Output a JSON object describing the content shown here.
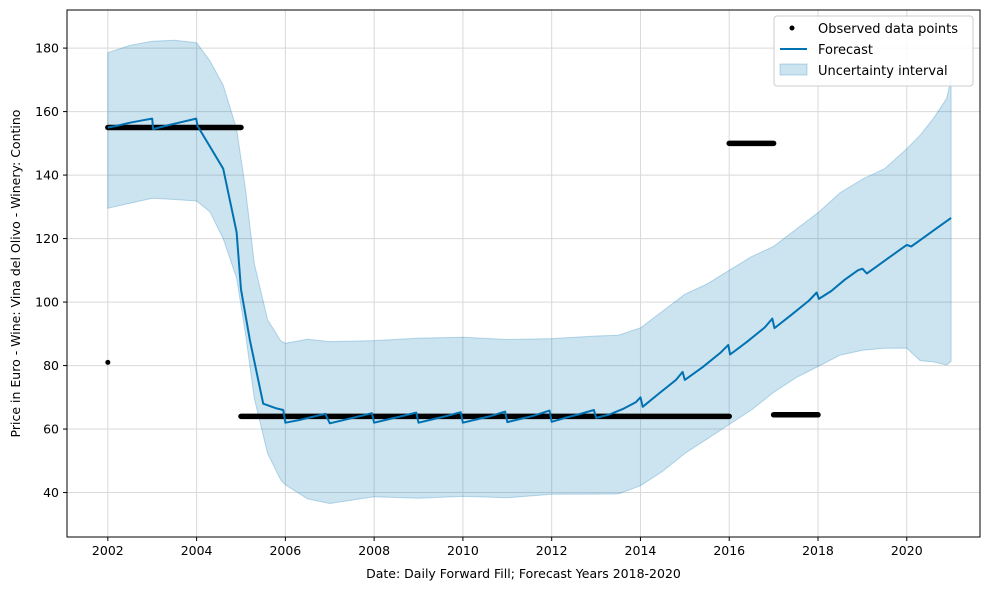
{
  "chart_data": {
    "type": "line",
    "title": "",
    "xlabel": "Date: Daily Forward Fill; Forecast Years 2018-2020",
    "ylabel": "Price in Euro - Wine: Vina del Olivo - Winery: Contino",
    "xlim": [
      2001.08,
      2021.65
    ],
    "ylim": [
      26,
      192
    ],
    "x_ticks": [
      2002,
      2004,
      2006,
      2008,
      2010,
      2012,
      2014,
      2016,
      2018,
      2020
    ],
    "x_tick_labels": [
      "2002",
      "2004",
      "2006",
      "2008",
      "2010",
      "2012",
      "2014",
      "2016",
      "2018",
      "2020"
    ],
    "y_ticks": [
      40,
      60,
      80,
      100,
      120,
      140,
      160,
      180
    ],
    "y_tick_labels": [
      "40",
      "60",
      "80",
      "100",
      "120",
      "140",
      "160",
      "180"
    ],
    "grid": true,
    "legend": {
      "position": "top-right",
      "entries": [
        "Observed data points",
        "Forecast",
        "Uncertainty interval"
      ]
    },
    "series": [
      {
        "name": "Observed data points",
        "kind": "scatter-segments",
        "color": "#000000",
        "single_points": [
          [
            2002.0,
            81
          ]
        ],
        "segments": [
          {
            "x_start": 2002.0,
            "x_end": 2005.0,
            "y": 155
          },
          {
            "x_start": 2005.0,
            "x_end": 2016.0,
            "y": 64
          },
          {
            "x_start": 2016.0,
            "x_end": 2017.0,
            "y": 150
          },
          {
            "x_start": 2017.0,
            "x_end": 2018.0,
            "y": 64.5
          }
        ]
      },
      {
        "name": "Forecast",
        "kind": "line",
        "color": "#0072b2",
        "x": [
          2002.0,
          2002.2,
          2002.5,
          2002.8,
          2003.0,
          2003.02,
          2003.3,
          2003.6,
          2003.99,
          2004.02,
          2004.3,
          2004.6,
          2004.9,
          2005.0,
          2005.2,
          2005.5,
          2005.8,
          2005.95,
          2006.0,
          2006.3,
          2006.6,
          2006.9,
          2007.0,
          2007.3,
          2007.6,
          2007.95,
          2008.0,
          2008.3,
          2008.6,
          2008.95,
          2009.0,
          2009.3,
          2009.6,
          2009.95,
          2010.0,
          2010.3,
          2010.6,
          2010.95,
          2011.0,
          2011.3,
          2011.6,
          2011.95,
          2012.0,
          2012.3,
          2012.6,
          2012.95,
          2013.0,
          2013.3,
          2013.6,
          2013.9,
          2014.0,
          2014.05,
          2014.4,
          2014.8,
          2014.95,
          2015.0,
          2015.4,
          2015.8,
          2015.98,
          2016.02,
          2016.4,
          2016.8,
          2016.97,
          2017.02,
          2017.4,
          2017.8,
          2017.97,
          2018.02,
          2018.3,
          2018.6,
          2018.9,
          2019.0,
          2019.1,
          2019.3,
          2019.6,
          2019.9,
          2020.0,
          2020.1,
          2020.3,
          2020.6,
          2020.9,
          2021.0
        ],
        "y": [
          155,
          155.5,
          156.5,
          157.3,
          157.8,
          154.5,
          155.5,
          156.5,
          157.8,
          155.5,
          149,
          142,
          122,
          104,
          88,
          68,
          66.5,
          66,
          62,
          62.8,
          63.8,
          64.8,
          61.8,
          62.8,
          63.8,
          65,
          62,
          63,
          64,
          65.2,
          62,
          63,
          64,
          65.3,
          62,
          63,
          64,
          65.5,
          62.2,
          63.2,
          64.2,
          65.8,
          62.3,
          63.5,
          64.6,
          66,
          63.5,
          64.6,
          66.3,
          68.5,
          70,
          67,
          71,
          75.5,
          78,
          75.5,
          79.5,
          84,
          86.5,
          83.5,
          87.5,
          92,
          94.8,
          91.8,
          96,
          100.5,
          103,
          101,
          103.5,
          107,
          110,
          110.5,
          109,
          111,
          114,
          117,
          118,
          117.5,
          119.5,
          122.5,
          125.5,
          126.5
        ]
      },
      {
        "name": "Uncertainty interval",
        "kind": "band",
        "color": "#0072b2",
        "x": [
          2002.0,
          2002.5,
          2003.0,
          2003.5,
          2004.0,
          2004.3,
          2004.6,
          2004.9,
          2005.1,
          2005.3,
          2005.6,
          2005.9,
          2006.0,
          2006.5,
          2007.0,
          2008.0,
          2009.0,
          2010.0,
          2011.0,
          2012.0,
          2013.0,
          2013.5,
          2014.0,
          2014.5,
          2015.0,
          2015.5,
          2016.0,
          2016.5,
          2017.0,
          2017.5,
          2018.0,
          2018.5,
          2019.0,
          2019.5,
          2020.0,
          2020.3,
          2020.6,
          2020.9,
          2021.0
        ],
        "lower": [
          130,
          131,
          133,
          132,
          132,
          128,
          120,
          108,
          90,
          70,
          52,
          44,
          42,
          38,
          37,
          38.5,
          38.5,
          38.5,
          38.5,
          39,
          39.5,
          40,
          42,
          47,
          52,
          57,
          61,
          66,
          72,
          76,
          80,
          83,
          85,
          85,
          85.5,
          82,
          81,
          80.5,
          81
        ],
        "upper": [
          179,
          181,
          182,
          182,
          182,
          176,
          168,
          155,
          136,
          112,
          94,
          88,
          87,
          88,
          88,
          88,
          88.5,
          88.5,
          88.5,
          88.5,
          89,
          90,
          92,
          97,
          102,
          106,
          110,
          114,
          118,
          123,
          128,
          134,
          139,
          142,
          148,
          153,
          158,
          164,
          170
        ]
      }
    ]
  }
}
